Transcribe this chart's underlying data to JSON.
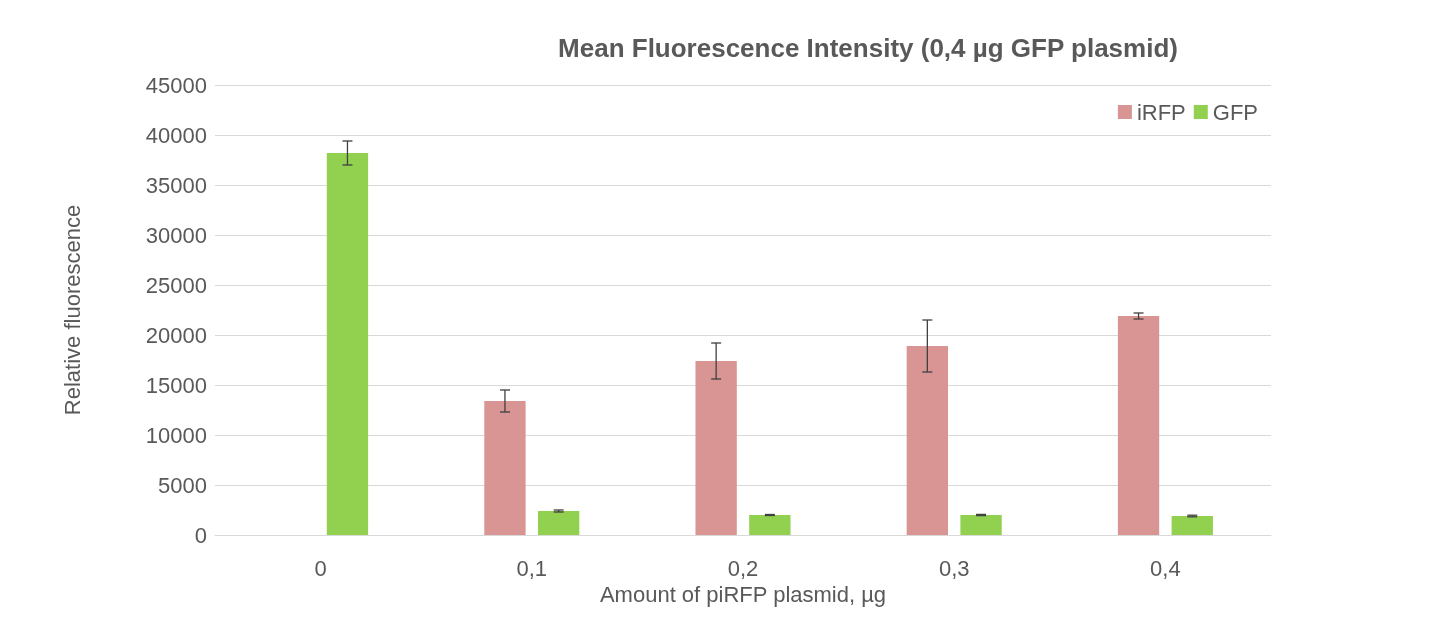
{
  "chart_data": {
    "type": "bar",
    "title": "Mean Fluorescence Intensity (0,4 µg GFP plasmid)",
    "xlabel": "Amount of piRFP plasmid, µg",
    "ylabel": "Relative fluorescence",
    "categories": [
      "0",
      "0,1",
      "0,2",
      "0,3",
      "0,4"
    ],
    "series": [
      {
        "name": "iRFP",
        "color": "#d99594",
        "values": [
          0,
          13400,
          17400,
          18900,
          21900
        ],
        "errors": [
          null,
          1100,
          1800,
          2600,
          300
        ]
      },
      {
        "name": "GFP",
        "color": "#92d050",
        "values": [
          38200,
          2400,
          2000,
          2000,
          1900
        ],
        "errors": [
          1200,
          100,
          50,
          60,
          80
        ]
      }
    ],
    "ylim": [
      0,
      45000
    ],
    "yticks": [
      0,
      5000,
      10000,
      15000,
      20000,
      25000,
      30000,
      35000,
      40000,
      45000
    ],
    "grid": "y",
    "legend": "top right"
  }
}
